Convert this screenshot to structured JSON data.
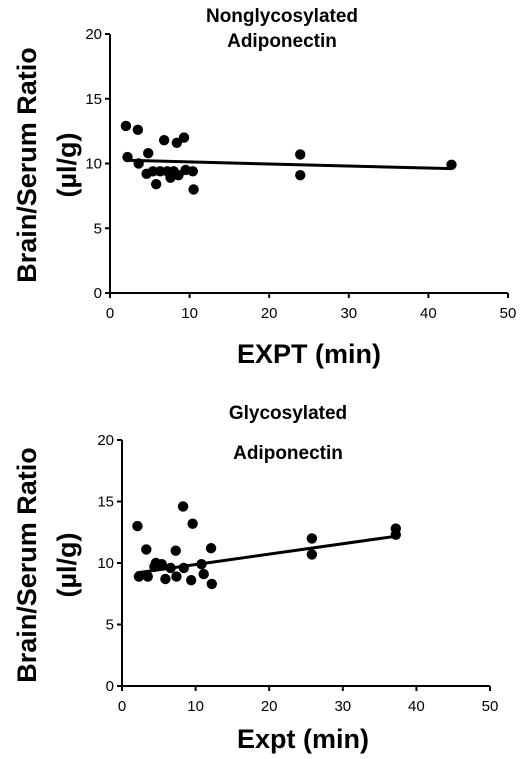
{
  "chart_data": [
    {
      "type": "scatter",
      "title_lines": [
        "Nonglycosylated",
        "Adiponectin"
      ],
      "xlabel": "EXPT (min)",
      "ylabel_lines": [
        "Brain/Serum Ratio",
        "(µl/g)"
      ],
      "xlim": [
        0,
        50
      ],
      "ylim": [
        0,
        20
      ],
      "xticks": [
        "0",
        "10",
        "20",
        "30",
        "40",
        "50"
      ],
      "yticks": [
        "0",
        "5",
        "10",
        "15",
        "20"
      ],
      "grid": false,
      "points": [
        {
          "x": 2.0,
          "y": 12.9
        },
        {
          "x": 3.5,
          "y": 12.6
        },
        {
          "x": 2.2,
          "y": 10.5
        },
        {
          "x": 3.6,
          "y": 10.0
        },
        {
          "x": 4.8,
          "y": 10.8
        },
        {
          "x": 4.6,
          "y": 9.2
        },
        {
          "x": 5.4,
          "y": 9.4
        },
        {
          "x": 5.8,
          "y": 8.4
        },
        {
          "x": 6.3,
          "y": 9.4
        },
        {
          "x": 6.8,
          "y": 11.8
        },
        {
          "x": 7.2,
          "y": 9.4
        },
        {
          "x": 7.6,
          "y": 8.9
        },
        {
          "x": 8.0,
          "y": 9.4
        },
        {
          "x": 8.4,
          "y": 11.6
        },
        {
          "x": 8.6,
          "y": 9.1
        },
        {
          "x": 9.3,
          "y": 12.0
        },
        {
          "x": 9.5,
          "y": 9.5
        },
        {
          "x": 10.4,
          "y": 9.4
        },
        {
          "x": 10.5,
          "y": 8.0
        },
        {
          "x": 23.9,
          "y": 10.7
        },
        {
          "x": 23.9,
          "y": 9.1
        },
        {
          "x": 42.9,
          "y": 9.9
        }
      ],
      "fit_line": {
        "x": [
          2,
          43
        ],
        "y": [
          10.25,
          9.6
        ]
      }
    },
    {
      "type": "scatter",
      "title_lines": [
        "Glycosylated",
        "Adiponectin"
      ],
      "xlabel": "Expt (min)",
      "ylabel_lines": [
        "Brain/Serum Ratio",
        "(µl/g)"
      ],
      "xlim": [
        0,
        50
      ],
      "ylim": [
        0,
        20
      ],
      "xticks": [
        "0",
        "10",
        "20",
        "30",
        "40",
        "50"
      ],
      "yticks": [
        "0",
        "5",
        "10",
        "15",
        "20"
      ],
      "grid": false,
      "points": [
        {
          "x": 2.1,
          "y": 13.0
        },
        {
          "x": 2.3,
          "y": 8.9
        },
        {
          "x": 3.3,
          "y": 11.1
        },
        {
          "x": 3.5,
          "y": 8.9
        },
        {
          "x": 4.4,
          "y": 9.7
        },
        {
          "x": 4.6,
          "y": 10.0
        },
        {
          "x": 5.4,
          "y": 9.9
        },
        {
          "x": 5.9,
          "y": 8.7
        },
        {
          "x": 6.6,
          "y": 9.6
        },
        {
          "x": 7.3,
          "y": 11.0
        },
        {
          "x": 7.4,
          "y": 8.9
        },
        {
          "x": 8.3,
          "y": 14.6
        },
        {
          "x": 8.4,
          "y": 9.6
        },
        {
          "x": 9.4,
          "y": 8.6
        },
        {
          "x": 9.6,
          "y": 13.2
        },
        {
          "x": 10.8,
          "y": 9.9
        },
        {
          "x": 11.1,
          "y": 9.1
        },
        {
          "x": 12.1,
          "y": 11.2
        },
        {
          "x": 12.2,
          "y": 8.3
        },
        {
          "x": 25.8,
          "y": 12.0
        },
        {
          "x": 25.8,
          "y": 10.7
        },
        {
          "x": 37.2,
          "y": 12.8
        },
        {
          "x": 37.2,
          "y": 12.3
        }
      ],
      "fit_line": {
        "x": [
          2,
          37.5
        ],
        "y": [
          9.2,
          12.2
        ]
      }
    }
  ]
}
